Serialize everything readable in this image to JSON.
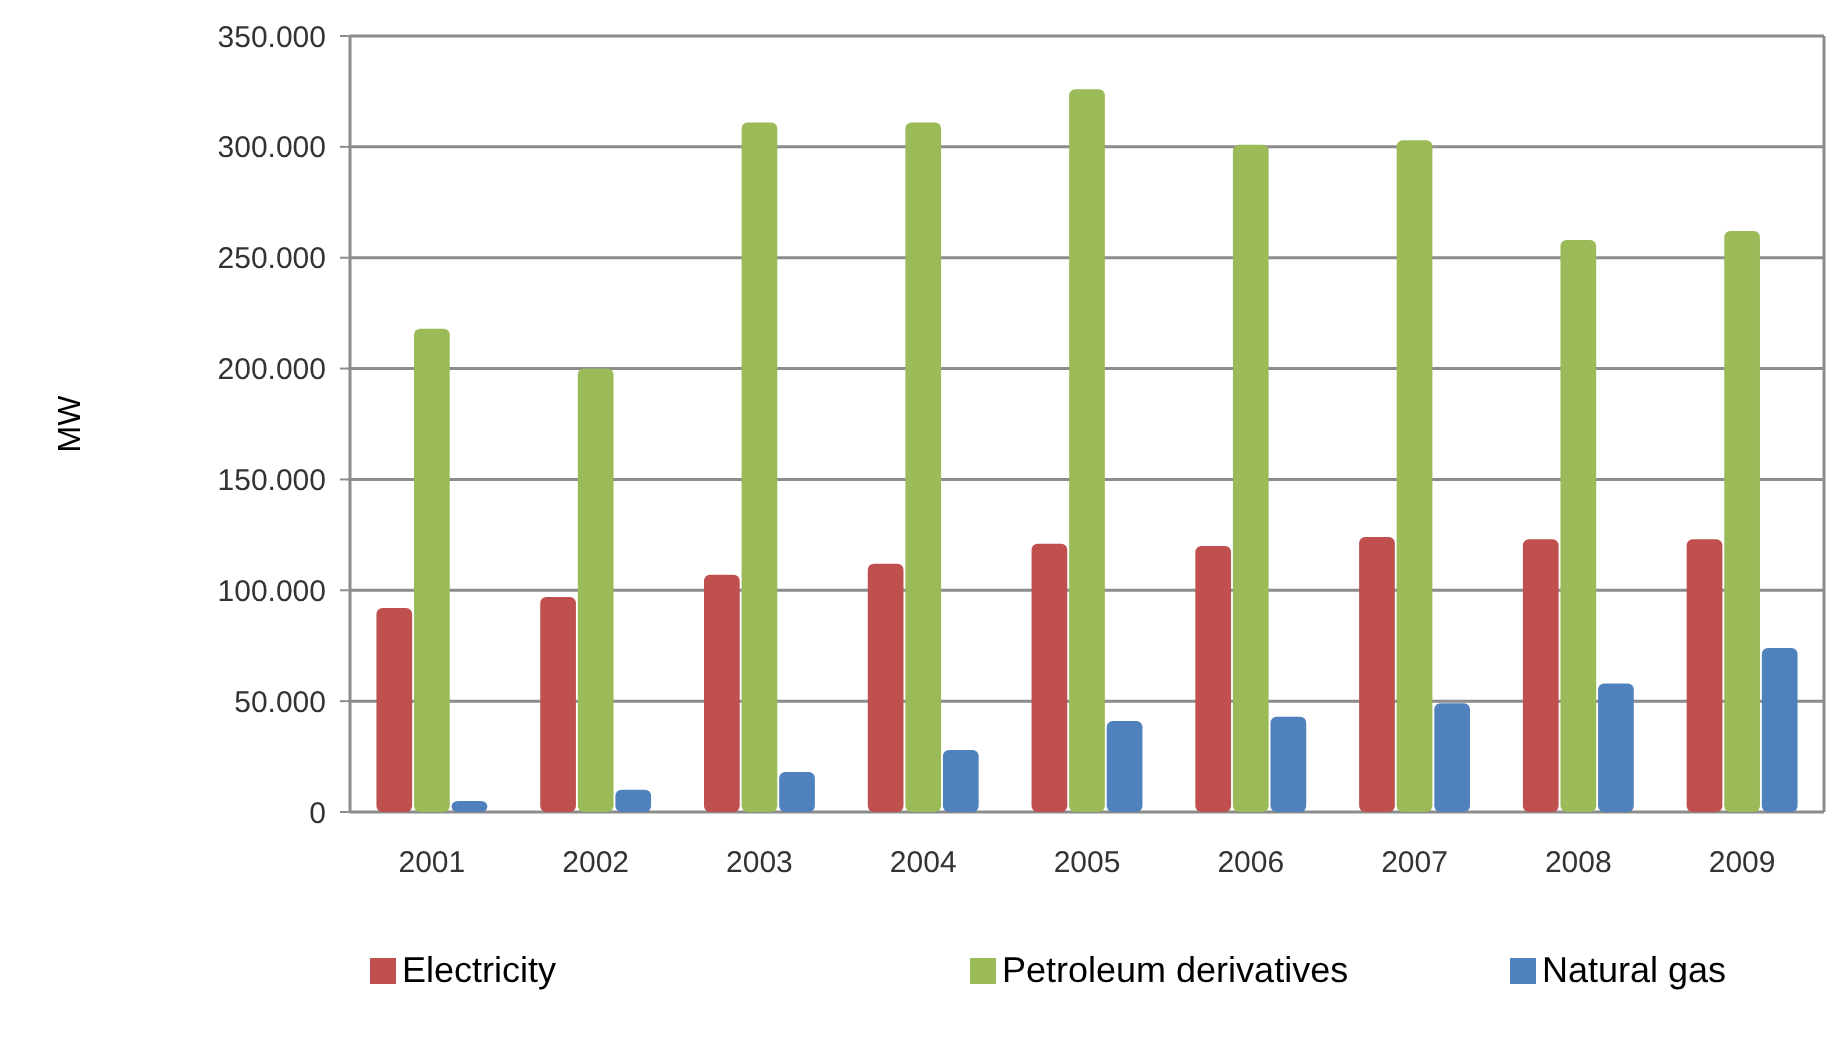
{
  "chart_data": {
    "type": "bar",
    "ylabel": "MW",
    "categories": [
      "2001",
      "2002",
      "2003",
      "2004",
      "2005",
      "2006",
      "2007",
      "2008",
      "2009"
    ],
    "series": [
      {
        "name": "Electricity",
        "color": "#c0504d",
        "values": [
          92000,
          97000,
          107000,
          112000,
          121000,
          120000,
          124000,
          123000,
          123000
        ]
      },
      {
        "name": "Petroleum derivatives",
        "color": "#9bbb59",
        "values": [
          218000,
          200000,
          311000,
          311000,
          326000,
          301000,
          303000,
          258000,
          262000
        ]
      },
      {
        "name": "Natural gas",
        "color": "#4f81bd",
        "values": [
          5000,
          10000,
          18000,
          28000,
          41000,
          43000,
          49000,
          58000,
          74000
        ]
      }
    ],
    "ylim": [
      0,
      350000
    ],
    "yticks": [
      {
        "value": 0,
        "label": "0"
      },
      {
        "value": 50000,
        "label": "50.000"
      },
      {
        "value": 100000,
        "label": "100.000"
      },
      {
        "value": 150000,
        "label": "150.000"
      },
      {
        "value": 200000,
        "label": "200.000"
      },
      {
        "value": 250000,
        "label": "250.000"
      },
      {
        "value": 300000,
        "label": "300.000"
      },
      {
        "value": 350000,
        "label": "350.000"
      }
    ],
    "grid": "y",
    "legend": "bottom"
  }
}
